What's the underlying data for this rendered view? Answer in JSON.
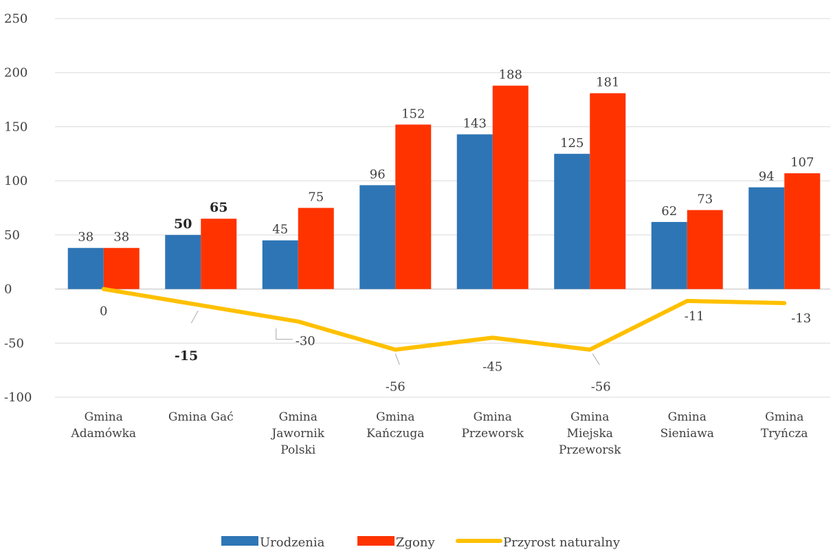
{
  "chart_data": {
    "type": "bar",
    "title": "",
    "xlabel": "",
    "ylabel": "",
    "ylim": [
      -100,
      250
    ],
    "yticks": [
      -100,
      -50,
      0,
      50,
      100,
      150,
      200,
      250
    ],
    "grid": true,
    "legend_position": "bottom",
    "categories": [
      [
        "Gmina",
        "Adamówka"
      ],
      [
        "Gmina Gać"
      ],
      [
        "Gmina",
        "Jawornik",
        "Polski"
      ],
      [
        "Gmina",
        "Kańczuga"
      ],
      [
        "Gmina",
        "Przeworsk"
      ],
      [
        "Gmina",
        "Miejska",
        "Przeworsk"
      ],
      [
        "Gmina",
        "Sieniawa"
      ],
      [
        "Gmina",
        "Tryńcza"
      ]
    ],
    "series": [
      {
        "name": "Urodzenia",
        "type": "bar",
        "color": "#2E75B6",
        "values": [
          38,
          50,
          45,
          96,
          143,
          125,
          62,
          94
        ]
      },
      {
        "name": "Zgony",
        "type": "bar",
        "color": "#FF3300",
        "values": [
          38,
          65,
          75,
          152,
          188,
          181,
          73,
          107
        ]
      },
      {
        "name": "Przyrost naturalny",
        "type": "line",
        "color": "#FFC000",
        "values": [
          0,
          -15,
          -30,
          -56,
          -45,
          -56,
          -11,
          -13
        ]
      }
    ],
    "emphasized_category": "Gmina Gać"
  }
}
